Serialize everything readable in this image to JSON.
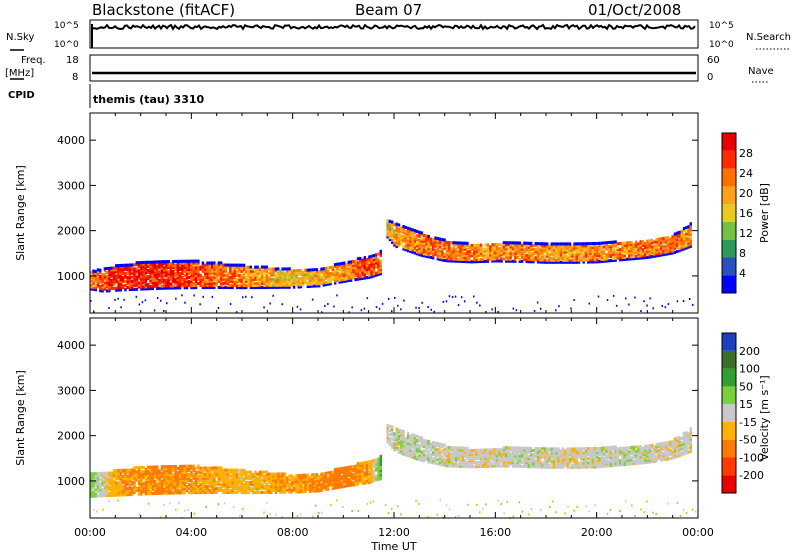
{
  "header": {
    "station": "Blackstone (fitACF)",
    "beam": "Beam 07",
    "date": "01/Oct/2008"
  },
  "top_panels": {
    "nsky": {
      "label": "N.Sky",
      "ticks": [
        "10^5",
        "10^0"
      ]
    },
    "nsearch": {
      "label": "N.Search",
      "ticks": [
        "10^5",
        "10^0"
      ]
    },
    "freq": {
      "label_line1": "Freq.",
      "label_line2": "[MHz]",
      "ticks": [
        "18",
        "8"
      ]
    },
    "nave": {
      "label": "Nave",
      "ticks": [
        "60",
        "0"
      ]
    },
    "cpid": {
      "label": "CPID",
      "value": "themis (tau) 3310"
    }
  },
  "colors": {
    "power_scale": [
      "#0000ff",
      "#2a4fc0",
      "#2e9a5a",
      "#76c043",
      "#e9c91e",
      "#ffa21a",
      "#ff7000",
      "#ff2a00",
      "#e80000"
    ],
    "velocity_scale": [
      "#1c3fc0",
      "#3a6f2a",
      "#2fa02f",
      "#7ccf3c",
      "#c8c8c8",
      "#ffb000",
      "#ff7a00",
      "#ff3a00",
      "#e60000"
    ]
  },
  "chart_data": [
    {
      "type": "heatmap",
      "title": "",
      "ylabel": "Slant Range [km]",
      "xlabel": "",
      "ylim": [
        180,
        4600
      ],
      "yticks": [
        "1000",
        "2000",
        "3000",
        "4000"
      ],
      "xticks": [
        "00:00",
        "04:00",
        "08:00",
        "12:00",
        "16:00",
        "20:00",
        "00:00"
      ],
      "colorbar": {
        "label": "Power [dB]",
        "ticks": [
          "4",
          "8",
          "12",
          "16",
          "20",
          "24",
          "28"
        ],
        "range": [
          0,
          30
        ]
      },
      "series": [
        {
          "name": "",
          "x": [
            0,
            0.5,
            1,
            2,
            3,
            4,
            5,
            6,
            7,
            8,
            9,
            10,
            11,
            11.5
          ],
          "y_center": [
            900,
            900,
            950,
            1000,
            1020,
            1030,
            1010,
            980,
            960,
            940,
            960,
            1080,
            1200,
            1300
          ],
          "width": [
            400,
            500,
            550,
            600,
            600,
            600,
            550,
            500,
            450,
            400,
            380,
            420,
            480,
            500
          ],
          "intensity": [
            20,
            24,
            27,
            27,
            26,
            25,
            22,
            20,
            18,
            16,
            17,
            20,
            24,
            22
          ]
        },
        {
          "name": "",
          "x": [
            11.7,
            12,
            13,
            14,
            15,
            16,
            17,
            18,
            19,
            20,
            21,
            22,
            23,
            23.7
          ],
          "y_center": [
            2050,
            1900,
            1700,
            1550,
            1500,
            1520,
            1520,
            1500,
            1500,
            1510,
            1550,
            1600,
            1700,
            1900
          ],
          "width": [
            400,
            500,
            500,
            450,
            400,
            400,
            420,
            420,
            420,
            420,
            400,
            400,
            400,
            500
          ],
          "intensity": [
            16,
            18,
            20,
            22,
            21,
            20,
            20,
            20,
            19,
            20,
            20,
            21,
            22,
            18
          ]
        }
      ]
    },
    {
      "type": "heatmap",
      "title": "",
      "ylabel": "Slant Range [km]",
      "xlabel": "Time UT",
      "ylim": [
        180,
        4600
      ],
      "yticks": [
        "1000",
        "2000",
        "3000",
        "4000"
      ],
      "xticks": [
        "00:00",
        "04:00",
        "08:00",
        "12:00",
        "16:00",
        "20:00",
        "00:00"
      ],
      "colorbar": {
        "label": "Velocity [m s⁻¹]",
        "ticks": [
          "200",
          "100",
          "50",
          "15",
          "-15",
          "-50",
          "-100",
          "-200"
        ],
        "range": [
          -250,
          250
        ]
      },
      "series": [
        {
          "name": "",
          "x": [
            0,
            1,
            2,
            3,
            4,
            5,
            6,
            7,
            8,
            9,
            10,
            11,
            11.5
          ],
          "y_center": [
            900,
            950,
            1000,
            1020,
            1030,
            1010,
            980,
            960,
            940,
            960,
            1080,
            1200,
            1300
          ],
          "width": [
            500,
            550,
            600,
            600,
            600,
            550,
            500,
            450,
            400,
            380,
            420,
            480,
            500
          ],
          "velocity": [
            30,
            -40,
            -60,
            -55,
            -50,
            -40,
            -30,
            -40,
            -50,
            -60,
            -70,
            -40,
            60
          ]
        },
        {
          "name": "",
          "x": [
            11.7,
            12,
            13,
            14,
            15,
            16,
            17,
            18,
            19,
            20,
            21,
            22,
            23,
            23.7
          ],
          "y_center": [
            2050,
            1900,
            1700,
            1550,
            1500,
            1520,
            1520,
            1500,
            1500,
            1510,
            1550,
            1600,
            1700,
            1900
          ],
          "width": [
            400,
            500,
            500,
            450,
            400,
            400,
            420,
            420,
            420,
            420,
            400,
            400,
            400,
            500
          ],
          "velocity": [
            -5,
            0,
            5,
            0,
            -5,
            0,
            5,
            0,
            -5,
            0,
            5,
            0,
            -5,
            0
          ]
        }
      ]
    }
  ]
}
